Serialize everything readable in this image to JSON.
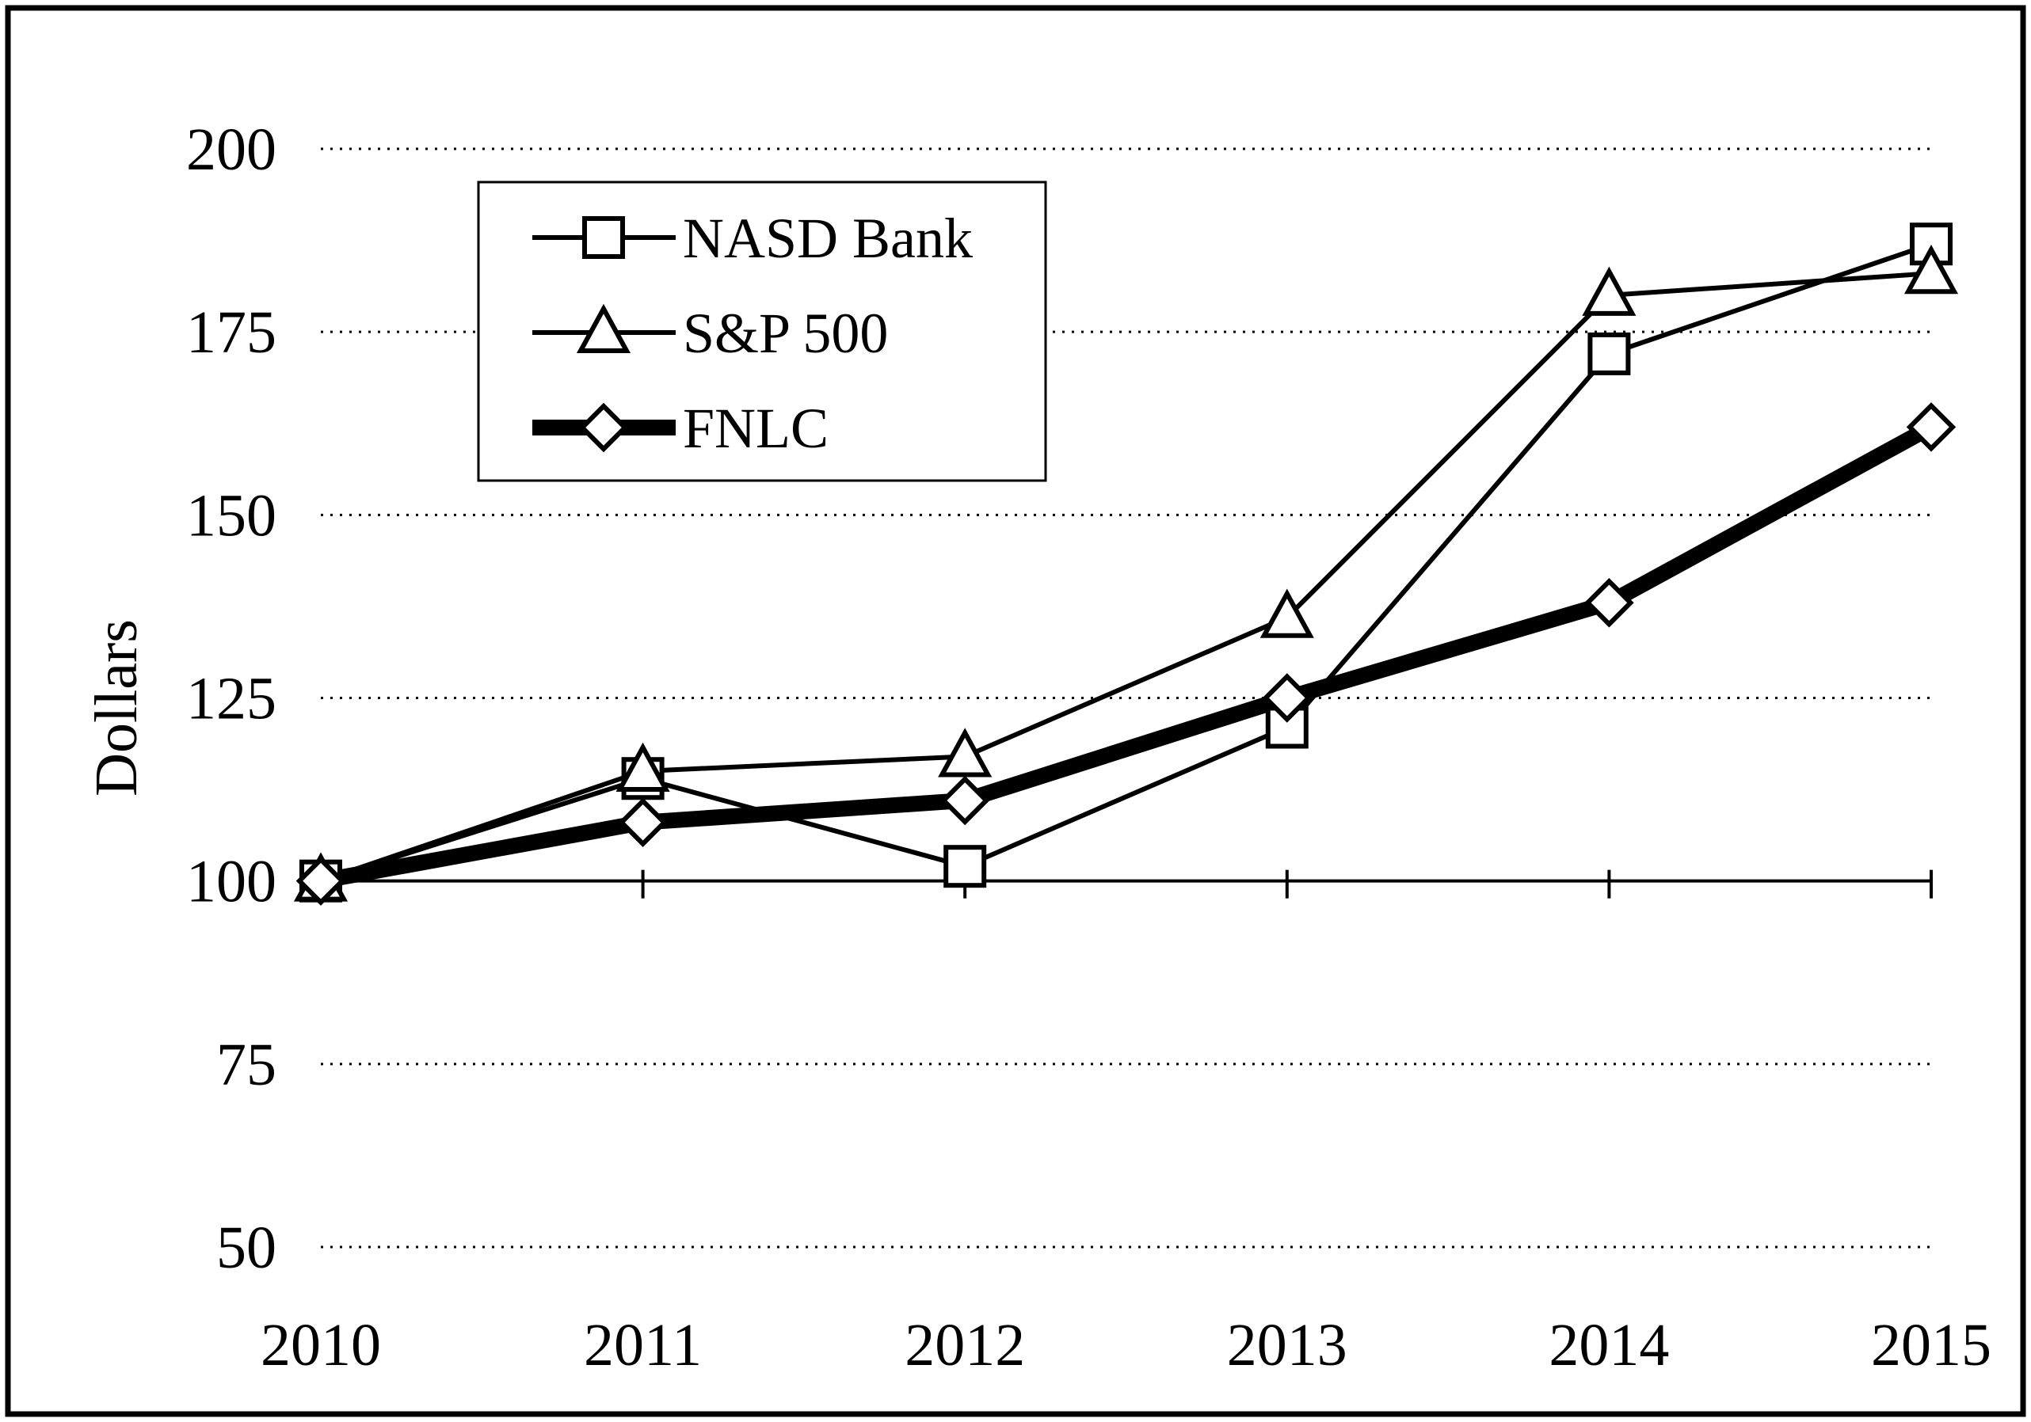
{
  "figure": {
    "background": "#ffffff",
    "border_color": "#000000"
  },
  "chart_data": {
    "type": "line",
    "title": "",
    "xlabel": "",
    "ylabel": "Dollars",
    "x": [
      2010,
      2011,
      2012,
      2013,
      2014,
      2015
    ],
    "ylim": [
      50,
      200
    ],
    "yticks": [
      50,
      75,
      100,
      125,
      150,
      175,
      200
    ],
    "grid": "dotted-horizontal",
    "axis_baseline_value": 100,
    "legend_position": "upper-left-inside",
    "series": [
      {
        "name": "NASD Bank",
        "marker": "square",
        "line_weight": "thin",
        "values": [
          100,
          114,
          102,
          121,
          172,
          187
        ]
      },
      {
        "name": "S&P 500",
        "marker": "triangle",
        "line_weight": "thin",
        "values": [
          100,
          115,
          117,
          136,
          180,
          183
        ]
      },
      {
        "name": "FNLC",
        "marker": "diamond",
        "line_weight": "thick",
        "values": [
          100,
          108,
          111,
          125,
          138,
          162
        ]
      }
    ],
    "colors": {
      "line": "#000000",
      "marker_fill": "#ffffff",
      "background": "#ffffff"
    }
  }
}
